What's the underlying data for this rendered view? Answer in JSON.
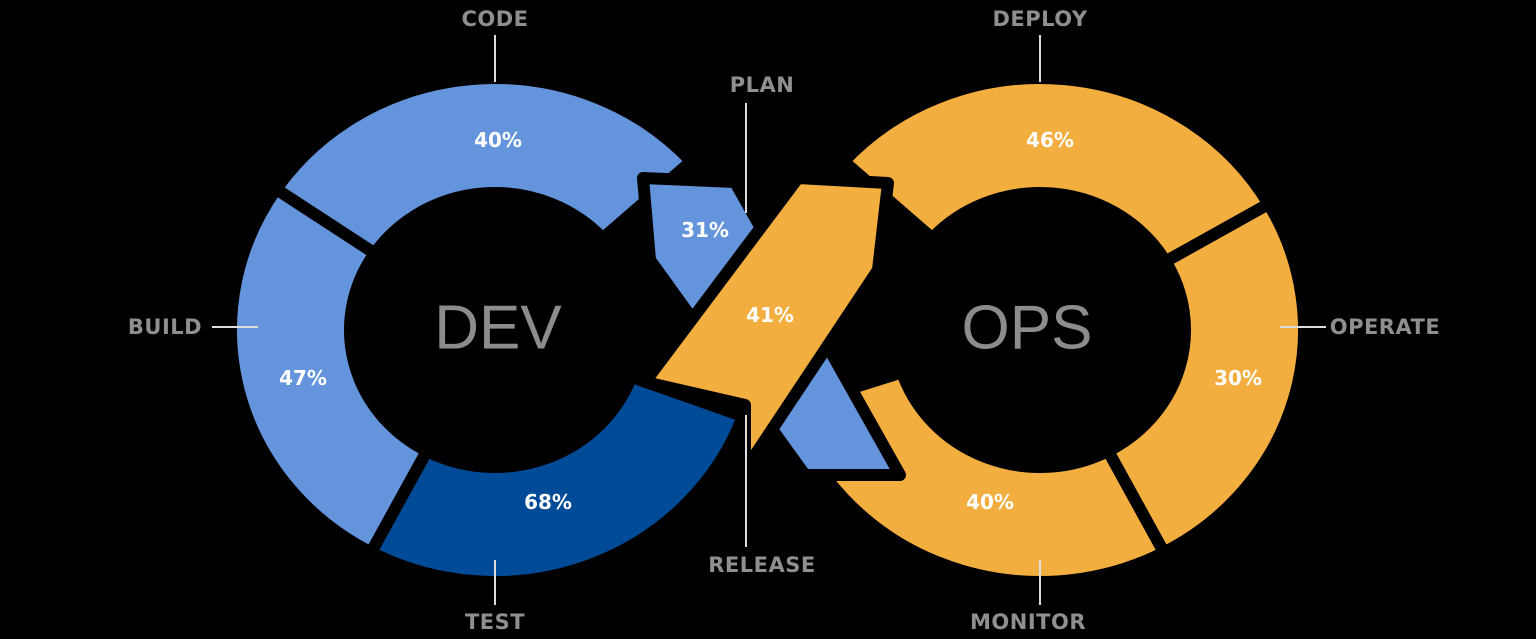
{
  "colors": {
    "light_blue": "#6495dc",
    "dark_blue": "#004b97",
    "orange": "#f3ae40",
    "label": "#8f8f8f",
    "background": "#000000"
  },
  "centers": {
    "dev": "DEV",
    "ops": "OPS"
  },
  "stages": {
    "code": {
      "label": "CODE",
      "percent": "40%"
    },
    "build": {
      "label": "BUILD",
      "percent": "47%"
    },
    "test": {
      "label": "TEST",
      "percent": "68%"
    },
    "plan": {
      "label": "PLAN",
      "percent": "31%"
    },
    "release": {
      "label": "RELEASE",
      "percent": "41%"
    },
    "deploy": {
      "label": "DEPLOY",
      "percent": "46%"
    },
    "operate": {
      "label": "OPERATE",
      "percent": "30%"
    },
    "monitor": {
      "label": "MONITOR",
      "percent": "40%"
    }
  }
}
